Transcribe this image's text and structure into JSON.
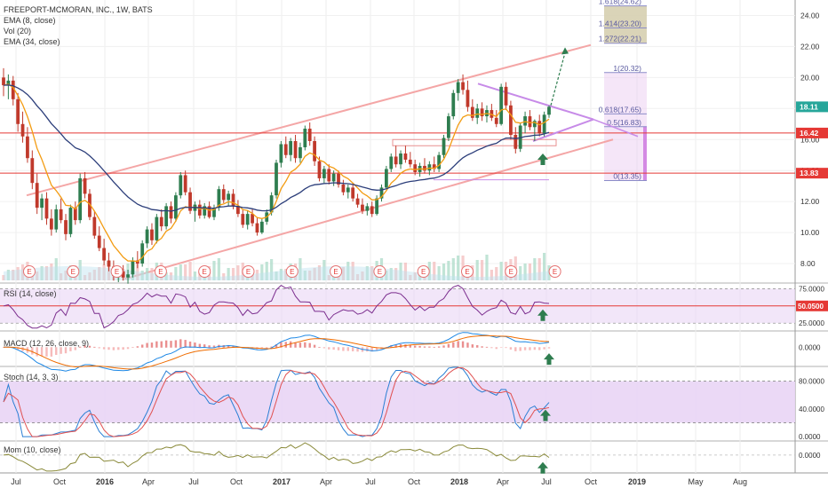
{
  "header": {
    "title": "FREEPORT-MCMORAN, INC., 1W, BATS",
    "ema_fast_label": "EMA (8, close)",
    "vol_label": "Vol (20)",
    "ema_slow_label": "EMA (34, close)"
  },
  "indicators": {
    "rsi_label": "RSI (14, close)",
    "macd_label": "MACD (12, 26, close, 9)",
    "stoch_label": "Stoch (14, 3, 3)",
    "mom_label": "Mom (10, close)"
  },
  "colors": {
    "up": "#2e7d4f",
    "down": "#c0392b",
    "ema_fast": "#f39c12",
    "ema_slow": "#2c3e7a",
    "channel": "#f4a6a6",
    "hline": "#e53935",
    "triangle": "#c78be8",
    "arrow": "#2e7d4f",
    "rsi": "#7b2d8e",
    "stoch_k": "#2a7fd4",
    "stoch_d": "#e05050",
    "mom": "#8a8a3a",
    "band": "#e9d5f5",
    "fib_box": "#d6cfb0",
    "fib_box2": "#e8c8f0"
  },
  "chart_data": {
    "type": "candlestick",
    "x_tick_labels": [
      "Jul",
      "Oct",
      "2016",
      "Apr",
      "Jul",
      "Oct",
      "2017",
      "Apr",
      "Jul",
      "Oct",
      "2018",
      "Apr",
      "Jul",
      "Oct",
      "2019",
      "May",
      "Aug"
    ],
    "price_axis_ticks": [
      "24.00",
      "22.00",
      "20.00",
      "18.00",
      "16.00",
      "14.00",
      "12.00",
      "10.00",
      "8.00"
    ],
    "ylim": [
      6.8,
      25.0
    ],
    "price_badges": [
      {
        "label": "18.11",
        "value": 18.11,
        "color": "#26a69a"
      },
      {
        "label": "16.42",
        "value": 16.42,
        "color": "#e53935"
      },
      {
        "label": "13.83",
        "value": 13.83,
        "color": "#e53935"
      }
    ],
    "horizontal_lines": [
      16.42,
      13.83
    ],
    "fib_levels": [
      {
        "label": "1.618(24.62)",
        "value": 24.62
      },
      {
        "label": "1.414(23.20)",
        "value": 23.2
      },
      {
        "label": "1.272(22.21)",
        "value": 22.21
      },
      {
        "label": "1(20.32)",
        "value": 20.32
      },
      {
        "label": "0.618(17.65)",
        "value": 17.65
      },
      {
        "label": "0.5(16.83)",
        "value": 16.83
      },
      {
        "label": "0(13.35)",
        "value": 13.35
      }
    ],
    "earnings_marker": "E",
    "earnings_count": 13,
    "rsi": {
      "ticks": [
        "75.0000",
        "50.0500",
        "25.0000"
      ],
      "current": 50.05,
      "ylim": [
        15,
        82
      ]
    },
    "macd": {
      "ticks": [
        "0.0000"
      ],
      "ylim": [
        -1.8,
        1.5
      ]
    },
    "stoch": {
      "ticks": [
        "80.0000",
        "40.0000",
        "0.0000"
      ],
      "ylim": [
        -5,
        100
      ]
    },
    "mom": {
      "ticks": [
        "0.0000"
      ],
      "ylim": [
        -9,
        7
      ]
    },
    "candles": [
      [
        20.0,
        20.6,
        18.8,
        19.5
      ],
      [
        19.5,
        20.2,
        18.6,
        19.8
      ],
      [
        19.8,
        20.1,
        18.2,
        18.6
      ],
      [
        18.6,
        19.0,
        16.5,
        17.0
      ],
      [
        17.0,
        17.8,
        15.8,
        16.2
      ],
      [
        16.2,
        16.8,
        14.5,
        14.8
      ],
      [
        14.8,
        15.3,
        12.8,
        13.2
      ],
      [
        13.2,
        13.8,
        11.2,
        11.6
      ],
      [
        11.6,
        12.5,
        10.8,
        12.2
      ],
      [
        12.2,
        12.6,
        10.5,
        10.9
      ],
      [
        10.9,
        11.5,
        9.8,
        10.2
      ],
      [
        10.2,
        11.8,
        10.0,
        11.5
      ],
      [
        11.5,
        12.2,
        10.6,
        10.8
      ],
      [
        10.8,
        11.2,
        9.5,
        9.9
      ],
      [
        9.9,
        11.8,
        9.7,
        11.6
      ],
      [
        11.6,
        12.0,
        10.5,
        10.8
      ],
      [
        10.8,
        13.8,
        10.6,
        13.5
      ],
      [
        13.5,
        13.9,
        12.2,
        12.5
      ],
      [
        12.5,
        12.8,
        10.8,
        11.0
      ],
      [
        11.0,
        11.4,
        9.6,
        9.8
      ],
      [
        9.8,
        10.4,
        8.8,
        9.0
      ],
      [
        9.0,
        9.6,
        7.9,
        8.2
      ],
      [
        8.2,
        8.7,
        7.5,
        7.8
      ],
      [
        7.8,
        8.2,
        6.9,
        7.2
      ],
      [
        7.2,
        7.8,
        6.8,
        7.5
      ],
      [
        7.5,
        7.9,
        6.9,
        7.1
      ],
      [
        7.1,
        7.6,
        6.7,
        7.3
      ],
      [
        7.3,
        8.4,
        7.1,
        8.2
      ],
      [
        8.2,
        8.8,
        7.7,
        8.0
      ],
      [
        8.0,
        9.5,
        7.8,
        9.3
      ],
      [
        9.3,
        10.4,
        9.0,
        10.2
      ],
      [
        10.2,
        10.6,
        9.2,
        9.5
      ],
      [
        9.5,
        11.2,
        9.3,
        11.0
      ],
      [
        11.0,
        11.5,
        10.1,
        10.4
      ],
      [
        10.4,
        11.9,
        10.2,
        11.7
      ],
      [
        11.7,
        12.0,
        10.6,
        10.9
      ],
      [
        10.9,
        12.6,
        10.7,
        12.4
      ],
      [
        12.4,
        13.9,
        12.2,
        13.7
      ],
      [
        13.7,
        14.0,
        12.4,
        12.6
      ],
      [
        12.6,
        12.9,
        11.2,
        11.4
      ],
      [
        11.4,
        12.0,
        10.7,
        11.8
      ],
      [
        11.8,
        12.1,
        10.9,
        11.1
      ],
      [
        11.1,
        11.9,
        10.9,
        11.7
      ],
      [
        11.7,
        12.0,
        10.9,
        11.0
      ],
      [
        11.0,
        11.8,
        10.8,
        11.6
      ],
      [
        11.6,
        13.0,
        11.4,
        12.8
      ],
      [
        12.8,
        13.1,
        11.9,
        12.1
      ],
      [
        12.1,
        12.7,
        11.7,
        12.5
      ],
      [
        12.5,
        12.8,
        11.5,
        11.7
      ],
      [
        11.7,
        12.1,
        11.0,
        11.2
      ],
      [
        11.2,
        11.5,
        10.3,
        10.5
      ],
      [
        10.5,
        11.4,
        10.2,
        11.2
      ],
      [
        11.2,
        11.5,
        10.4,
        10.6
      ],
      [
        10.6,
        11.0,
        9.8,
        10.0
      ],
      [
        10.0,
        10.9,
        9.9,
        10.7
      ],
      [
        10.7,
        11.5,
        10.5,
        11.3
      ],
      [
        11.3,
        12.6,
        11.1,
        12.4
      ],
      [
        12.4,
        14.7,
        12.2,
        14.5
      ],
      [
        14.5,
        15.9,
        14.2,
        15.7
      ],
      [
        15.7,
        16.2,
        14.8,
        15.0
      ],
      [
        15.0,
        16.1,
        14.6,
        15.9
      ],
      [
        15.9,
        16.3,
        14.5,
        14.8
      ],
      [
        14.8,
        15.8,
        14.5,
        15.5
      ],
      [
        15.5,
        16.9,
        15.3,
        16.7
      ],
      [
        16.7,
        17.1,
        15.6,
        15.9
      ],
      [
        15.9,
        16.2,
        14.3,
        14.6
      ],
      [
        14.6,
        14.9,
        13.3,
        13.5
      ],
      [
        13.5,
        14.3,
        13.2,
        14.1
      ],
      [
        14.1,
        14.4,
        13.1,
        13.3
      ],
      [
        13.3,
        14.0,
        13.0,
        13.8
      ],
      [
        13.8,
        14.0,
        12.9,
        13.1
      ],
      [
        13.1,
        13.4,
        12.4,
        12.6
      ],
      [
        12.6,
        13.1,
        12.2,
        12.9
      ],
      [
        12.9,
        13.2,
        12.0,
        12.2
      ],
      [
        12.2,
        12.5,
        11.6,
        11.8
      ],
      [
        11.8,
        12.2,
        11.2,
        11.4
      ],
      [
        11.4,
        11.9,
        11.1,
        11.7
      ],
      [
        11.7,
        12.0,
        11.0,
        11.2
      ],
      [
        11.2,
        12.4,
        11.1,
        12.2
      ],
      [
        12.2,
        13.1,
        12.0,
        12.9
      ],
      [
        12.9,
        14.3,
        12.8,
        14.1
      ],
      [
        14.1,
        15.1,
        13.9,
        14.9
      ],
      [
        14.9,
        15.6,
        14.2,
        14.4
      ],
      [
        14.4,
        15.3,
        14.1,
        15.1
      ],
      [
        15.1,
        15.6,
        14.5,
        14.7
      ],
      [
        14.7,
        15.2,
        14.2,
        14.4
      ],
      [
        14.4,
        14.7,
        13.7,
        13.9
      ],
      [
        13.9,
        14.5,
        13.6,
        14.3
      ],
      [
        14.3,
        14.8,
        13.8,
        14.0
      ],
      [
        14.0,
        14.6,
        13.7,
        14.4
      ],
      [
        14.4,
        14.9,
        13.9,
        14.1
      ],
      [
        14.1,
        15.2,
        13.9,
        15.0
      ],
      [
        15.0,
        16.3,
        14.8,
        16.1
      ],
      [
        16.1,
        17.7,
        15.9,
        17.5
      ],
      [
        17.5,
        19.2,
        17.3,
        19.0
      ],
      [
        19.0,
        19.9,
        18.5,
        19.7
      ],
      [
        19.7,
        20.2,
        18.9,
        19.2
      ],
      [
        19.2,
        19.8,
        17.8,
        18.1
      ],
      [
        18.1,
        18.6,
        17.2,
        17.4
      ],
      [
        17.4,
        18.3,
        17.0,
        18.0
      ],
      [
        18.0,
        18.4,
        17.2,
        17.5
      ],
      [
        17.5,
        18.2,
        17.1,
        17.9
      ],
      [
        17.9,
        18.3,
        17.2,
        17.4
      ],
      [
        17.4,
        17.9,
        16.8,
        17.0
      ],
      [
        17.0,
        19.6,
        16.9,
        19.4
      ],
      [
        19.4,
        19.7,
        17.9,
        18.2
      ],
      [
        18.2,
        18.5,
        16.0,
        16.3
      ],
      [
        16.3,
        16.8,
        15.1,
        15.4
      ],
      [
        15.4,
        17.1,
        15.2,
        16.9
      ],
      [
        16.9,
        17.8,
        16.4,
        17.5
      ],
      [
        17.5,
        17.9,
        16.6,
        16.8
      ],
      [
        16.8,
        17.3,
        15.9,
        17.2
      ],
      [
        17.2,
        17.6,
        16.2,
        16.4
      ],
      [
        16.4,
        17.8,
        16.2,
        17.6
      ],
      [
        17.6,
        18.2,
        17.4,
        18.11
      ]
    ]
  }
}
